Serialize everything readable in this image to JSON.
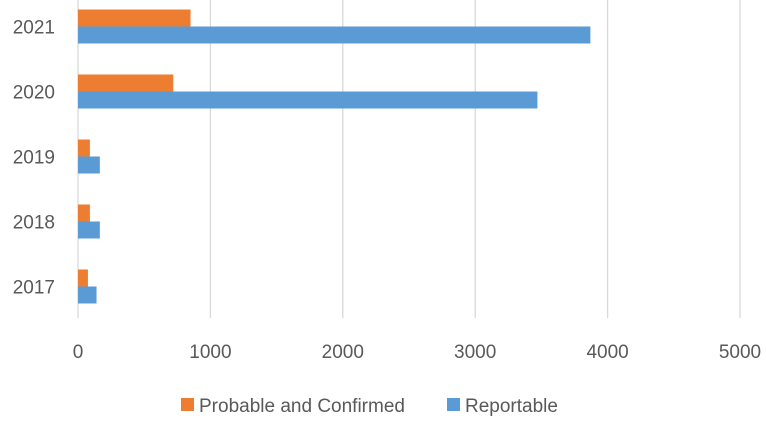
{
  "chart_data": {
    "type": "bar",
    "orientation": "horizontal",
    "categories": [
      "2017",
      "2018",
      "2019",
      "2020",
      "2021"
    ],
    "series": [
      {
        "name": "Probable and Confirmed",
        "color": "#ED7D31",
        "values": [
          75,
          90,
          90,
          720,
          850
        ]
      },
      {
        "name": "Reportable",
        "color": "#5B9BD5",
        "values": [
          140,
          165,
          165,
          3470,
          3870
        ]
      }
    ],
    "xlim": [
      0,
      5000
    ],
    "xticks": [
      "0",
      "1000",
      "2000",
      "3000",
      "4000",
      "5000"
    ],
    "grid": "vertical",
    "legend_position": "bottom"
  }
}
